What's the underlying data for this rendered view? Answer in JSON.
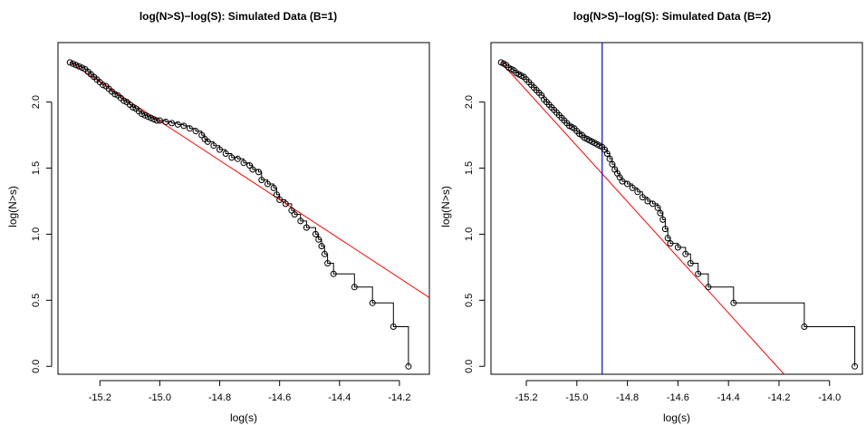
{
  "chart_data": [
    {
      "type": "scatter",
      "title": "log(N>S)−log(S): Simulated Data (B=1)",
      "xlabel": "log(s)",
      "ylabel": "log(N>s)",
      "xlim": [
        -15.34,
        -14.1
      ],
      "ylim": [
        -0.06,
        2.45
      ],
      "xticks": [
        "-15.2",
        "-15.0",
        "-14.8",
        "-14.6",
        "-14.4",
        "-14.2"
      ],
      "yticks": [
        "0.0",
        "0.5",
        "1.0",
        "1.5",
        "2.0"
      ],
      "colors": {
        "points": "#000000",
        "step": "#000000",
        "fit": "#ff0000",
        "cutoff": "#0000ff"
      },
      "points": [
        [
          -15.3,
          2.3
        ],
        [
          -15.29,
          2.29
        ],
        [
          -15.28,
          2.28
        ],
        [
          -15.27,
          2.27
        ],
        [
          -15.26,
          2.26
        ],
        [
          -15.25,
          2.25
        ],
        [
          -15.24,
          2.23
        ],
        [
          -15.23,
          2.21
        ],
        [
          -15.22,
          2.19
        ],
        [
          -15.21,
          2.17
        ],
        [
          -15.2,
          2.15
        ],
        [
          -15.19,
          2.13
        ],
        [
          -15.18,
          2.12
        ],
        [
          -15.17,
          2.1
        ],
        [
          -15.16,
          2.08
        ],
        [
          -15.15,
          2.06
        ],
        [
          -15.14,
          2.05
        ],
        [
          -15.13,
          2.03
        ],
        [
          -15.12,
          2.01
        ],
        [
          -15.11,
          2.0
        ],
        [
          -15.1,
          1.98
        ],
        [
          -15.09,
          1.96
        ],
        [
          -15.08,
          1.95
        ],
        [
          -15.07,
          1.93
        ],
        [
          -15.06,
          1.91
        ],
        [
          -15.05,
          1.9
        ],
        [
          -15.04,
          1.89
        ],
        [
          -15.03,
          1.88
        ],
        [
          -15.02,
          1.87
        ],
        [
          -15.01,
          1.86
        ],
        [
          -15.0,
          1.86
        ],
        [
          -14.98,
          1.85
        ],
        [
          -14.96,
          1.84
        ],
        [
          -14.94,
          1.83
        ],
        [
          -14.92,
          1.82
        ],
        [
          -14.9,
          1.8
        ],
        [
          -14.88,
          1.78
        ],
        [
          -14.86,
          1.75
        ],
        [
          -14.85,
          1.72
        ],
        [
          -14.84,
          1.7
        ],
        [
          -14.82,
          1.67
        ],
        [
          -14.8,
          1.64
        ],
        [
          -14.78,
          1.61
        ],
        [
          -14.76,
          1.58
        ],
        [
          -14.74,
          1.57
        ],
        [
          -14.72,
          1.54
        ],
        [
          -14.7,
          1.52
        ],
        [
          -14.69,
          1.49
        ],
        [
          -14.67,
          1.47
        ],
        [
          -14.66,
          1.41
        ],
        [
          -14.64,
          1.38
        ],
        [
          -14.62,
          1.35
        ],
        [
          -14.61,
          1.3
        ],
        [
          -14.6,
          1.26
        ],
        [
          -14.58,
          1.23
        ],
        [
          -14.56,
          1.18
        ],
        [
          -14.55,
          1.15
        ],
        [
          -14.53,
          1.1
        ],
        [
          -14.51,
          1.05
        ],
        [
          -14.48,
          1.0
        ],
        [
          -14.47,
          0.96
        ],
        [
          -14.46,
          0.91
        ],
        [
          -14.45,
          0.85
        ],
        [
          -14.44,
          0.78
        ],
        [
          -14.42,
          0.7
        ],
        [
          -14.35,
          0.6
        ],
        [
          -14.29,
          0.48
        ],
        [
          -14.22,
          0.3
        ],
        [
          -14.17,
          0.0
        ]
      ],
      "fit_line": {
        "x": [
          -15.3,
          -14.1
        ],
        "y": [
          2.3,
          0.52
        ]
      },
      "cutoff_x": null
    },
    {
      "type": "scatter",
      "title": "log(N>S)−log(S): Simulated Data (B=2)",
      "xlabel": "log(s)",
      "ylabel": "log(N>s)",
      "xlim": [
        -15.34,
        -13.87
      ],
      "ylim": [
        -0.06,
        2.45
      ],
      "xticks": [
        "-15.2",
        "-15.0",
        "-14.8",
        "-14.6",
        "-14.4",
        "-14.2",
        "-14.0"
      ],
      "yticks": [
        "0.0",
        "0.5",
        "1.0",
        "1.5",
        "2.0"
      ],
      "colors": {
        "points": "#000000",
        "step": "#000000",
        "fit": "#ff0000",
        "cutoff": "#0000ff"
      },
      "points": [
        [
          -15.3,
          2.3
        ],
        [
          -15.29,
          2.29
        ],
        [
          -15.28,
          2.28
        ],
        [
          -15.27,
          2.26
        ],
        [
          -15.26,
          2.25
        ],
        [
          -15.25,
          2.24
        ],
        [
          -15.24,
          2.22
        ],
        [
          -15.23,
          2.21
        ],
        [
          -15.22,
          2.2
        ],
        [
          -15.21,
          2.19
        ],
        [
          -15.2,
          2.17
        ],
        [
          -15.19,
          2.15
        ],
        [
          -15.18,
          2.13
        ],
        [
          -15.17,
          2.11
        ],
        [
          -15.16,
          2.09
        ],
        [
          -15.15,
          2.07
        ],
        [
          -15.14,
          2.05
        ],
        [
          -15.13,
          2.02
        ],
        [
          -15.12,
          2.0
        ],
        [
          -15.11,
          1.98
        ],
        [
          -15.1,
          1.96
        ],
        [
          -15.09,
          1.94
        ],
        [
          -15.08,
          1.92
        ],
        [
          -15.07,
          1.9
        ],
        [
          -15.06,
          1.88
        ],
        [
          -15.05,
          1.86
        ],
        [
          -15.04,
          1.84
        ],
        [
          -15.03,
          1.82
        ],
        [
          -15.02,
          1.81
        ],
        [
          -15.01,
          1.8
        ],
        [
          -15.0,
          1.78
        ],
        [
          -14.99,
          1.76
        ],
        [
          -14.98,
          1.75
        ],
        [
          -14.97,
          1.73
        ],
        [
          -14.96,
          1.72
        ],
        [
          -14.95,
          1.71
        ],
        [
          -14.94,
          1.7
        ],
        [
          -14.93,
          1.69
        ],
        [
          -14.92,
          1.68
        ],
        [
          -14.91,
          1.67
        ],
        [
          -14.9,
          1.66
        ],
        [
          -14.89,
          1.64
        ],
        [
          -14.88,
          1.61
        ],
        [
          -14.87,
          1.57
        ],
        [
          -14.86,
          1.53
        ],
        [
          -14.85,
          1.49
        ],
        [
          -14.84,
          1.46
        ],
        [
          -14.83,
          1.43
        ],
        [
          -14.82,
          1.4
        ],
        [
          -14.8,
          1.38
        ],
        [
          -14.78,
          1.35
        ],
        [
          -14.76,
          1.32
        ],
        [
          -14.74,
          1.28
        ],
        [
          -14.72,
          1.25
        ],
        [
          -14.7,
          1.23
        ],
        [
          -14.68,
          1.2
        ],
        [
          -14.67,
          1.16
        ],
        [
          -14.66,
          1.11
        ],
        [
          -14.65,
          1.04
        ],
        [
          -14.64,
          0.97
        ],
        [
          -14.63,
          0.93
        ],
        [
          -14.6,
          0.9
        ],
        [
          -14.57,
          0.85
        ],
        [
          -14.55,
          0.78
        ],
        [
          -14.52,
          0.7
        ],
        [
          -14.48,
          0.6
        ],
        [
          -14.38,
          0.48
        ],
        [
          -14.1,
          0.3
        ],
        [
          -13.9,
          0.0
        ]
      ],
      "fit_line": {
        "x": [
          -15.3,
          -14.18
        ],
        "y": [
          2.3,
          -0.06
        ]
      },
      "cutoff_x": -14.9
    }
  ]
}
